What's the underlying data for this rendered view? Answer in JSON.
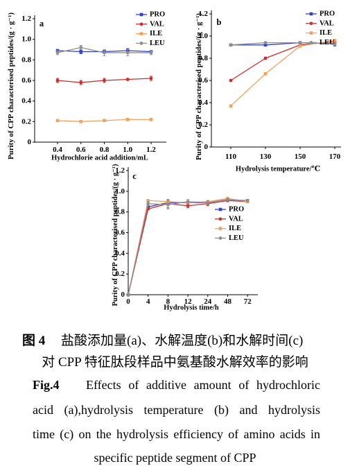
{
  "figure": {
    "caption": {
      "zh_label": "图 4",
      "zh_line1": "盐酸添加量(a)、水解温度(b)和水解时间(c)",
      "zh_line2": "对 CPP 特征肽段样品中氨基酸水解效率的影响",
      "en_label": "Fig.4",
      "en_line1": "Effects of additive amount of hydrochloric",
      "en_line2": "acid (a),hydrolysis temperature (b) and hydrolysis",
      "en_line3": "time (c) on the hydrolysis efficiency of amino acids in",
      "en_line4": "specific peptide segment of CPP"
    }
  },
  "chart_data": [
    {
      "panel": "a",
      "type": "line",
      "xlabel": "Hydrochlorie acid addition/mL",
      "ylabel": "Purity of CPP characterised peptides/(g · g⁻¹)",
      "categories": [
        "0.4",
        "0.6",
        "0.8",
        "1.0",
        "1.2"
      ],
      "ylim": [
        0,
        1.2
      ],
      "yticks": [
        "0",
        "0.2",
        "0.4",
        "0.6",
        "0.8",
        "1.0",
        "1.2"
      ],
      "grid": false,
      "legend": "top-right",
      "error_bars": true,
      "series": [
        {
          "name": "PRO",
          "color": "#2e3ed6",
          "values": [
            0.89,
            0.88,
            0.88,
            0.89,
            0.88
          ],
          "errors": [
            0.01,
            0.02,
            0.02,
            0.02,
            0.01
          ]
        },
        {
          "name": "VAL",
          "color": "#d42a2a",
          "values": [
            0.6,
            0.58,
            0.6,
            0.61,
            0.62
          ],
          "errors": [
            0.02,
            0.02,
            0.02,
            0.01,
            0.02
          ]
        },
        {
          "name": "ILE",
          "color": "#f2a05a",
          "values": [
            0.21,
            0.2,
            0.21,
            0.22,
            0.22
          ],
          "errors": [
            0.005,
            0.005,
            0.005,
            0.005,
            0.01
          ]
        },
        {
          "name": "LEU",
          "color": "#8e8e8e",
          "values": [
            0.87,
            0.92,
            0.87,
            0.87,
            0.87
          ],
          "errors": [
            0.02,
            0.02,
            0.03,
            0.03,
            0.02
          ]
        }
      ]
    },
    {
      "panel": "b",
      "type": "line",
      "xlabel": "Hydrolysis temperature/℃",
      "ylabel": "Purity of CPP characterised peptides/(g · g⁻¹)",
      "categories": [
        "110",
        "130",
        "150",
        "170"
      ],
      "ylim": [
        0,
        1.2
      ],
      "yticks": [
        "0",
        "0.2",
        "0.4",
        "0.6",
        "0.8",
        "1.0",
        "1.2"
      ],
      "grid": false,
      "legend": "top-right",
      "error_bars": true,
      "series": [
        {
          "name": "PRO",
          "color": "#2e3ed6",
          "values": [
            0.92,
            0.92,
            0.94,
            0.93
          ],
          "errors": [
            0.01,
            0.01,
            0.01,
            0.02
          ]
        },
        {
          "name": "VAL",
          "color": "#d42a2a",
          "values": [
            0.6,
            0.8,
            0.92,
            0.95
          ],
          "errors": [
            0.005,
            0.01,
            0.01,
            0.01
          ]
        },
        {
          "name": "ILE",
          "color": "#f2a05a",
          "values": [
            0.37,
            0.66,
            0.91,
            0.96
          ],
          "errors": [
            0.005,
            0.01,
            0.01,
            0.01
          ]
        },
        {
          "name": "LEU",
          "color": "#8e8e8e",
          "values": [
            0.92,
            0.94,
            0.94,
            0.93
          ],
          "errors": [
            0.01,
            0.01,
            0.01,
            0.01
          ]
        }
      ]
    },
    {
      "panel": "c",
      "type": "line",
      "xlabel": "Hydrolysis time/h",
      "ylabel": "Purity of CPP characterised peptides/(g · g⁻¹)",
      "categories": [
        "0",
        "4",
        "8",
        "12",
        "24",
        "48",
        "72"
      ],
      "ylim": [
        0,
        1.2
      ],
      "yticks": [
        "0",
        "0.2",
        "0.4",
        "0.6",
        "0.8",
        "1.0",
        "1.2"
      ],
      "grid": false,
      "legend": "center-right",
      "error_bars": true,
      "series": [
        {
          "name": "PRO",
          "color": "#2e3ed6",
          "values": [
            0,
            0.85,
            0.89,
            0.89,
            0.89,
            0.92,
            0.91
          ],
          "errors": [
            0,
            0.01,
            0.02,
            0.01,
            0.02,
            0.01,
            0.01
          ]
        },
        {
          "name": "VAL",
          "color": "#d42a2a",
          "values": [
            0,
            0.83,
            0.88,
            0.86,
            0.88,
            0.91,
            0.9
          ],
          "errors": [
            0,
            0.01,
            0.04,
            0.02,
            0.02,
            0.01,
            0.01
          ]
        },
        {
          "name": "ILE",
          "color": "#f2a05a",
          "values": [
            0,
            0.91,
            0.9,
            0.89,
            0.9,
            0.93,
            0.9
          ],
          "errors": [
            0,
            0.01,
            0.01,
            0.01,
            0.01,
            0.01,
            0.01
          ]
        },
        {
          "name": "LEU",
          "color": "#8e8e8e",
          "values": [
            0,
            0.88,
            0.87,
            0.9,
            0.89,
            0.92,
            0.91
          ],
          "errors": [
            0,
            0.02,
            0.04,
            0.02,
            0.02,
            0.01,
            0.01
          ]
        }
      ]
    }
  ]
}
